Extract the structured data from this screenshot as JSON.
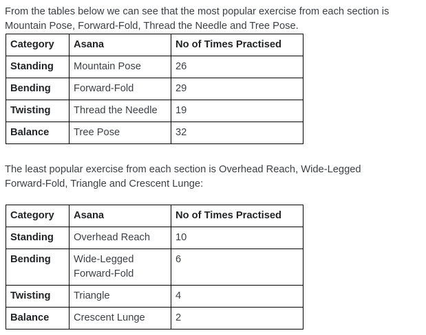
{
  "intro": {
    "lines": [
      "From the tables below we can see that the most popular exercise from each section is",
      "Mountain Pose, Forward-Fold, Thread the Needle and Tree Pose."
    ]
  },
  "least_popular_intro": {
    "lines": [
      "The least popular exercise from each section is Overhead Reach, Wide-Legged",
      "Forward-Fold, Triangle and Crescent Lunge:"
    ]
  },
  "tables": {
    "most_popular": {
      "headers": [
        "Category",
        "Asana",
        "No of Times Practised"
      ],
      "rows": [
        {
          "category": "Standing",
          "asana": "Mountain Pose",
          "count": "26"
        },
        {
          "category": "Bending",
          "asana": "Forward-Fold",
          "count": "29"
        },
        {
          "category": "Twisting",
          "asana": "Thread the Needle",
          "count": "19"
        },
        {
          "category": "Balance",
          "asana": "Tree Pose",
          "count": "32"
        }
      ]
    },
    "least_popular": {
      "headers": [
        "Category",
        "Asana",
        "No of Times Practised"
      ],
      "rows": [
        {
          "category": "Standing",
          "asana": "Overhead Reach",
          "count": "10"
        },
        {
          "category": "Bending",
          "asana": "Wide-Legged Forward-Fold",
          "count": "6"
        },
        {
          "category": "Twisting",
          "asana": "Triangle",
          "count": "4"
        },
        {
          "category": "Balance",
          "asana": "Crescent Lunge",
          "count": "2"
        }
      ]
    }
  },
  "colors": {
    "background": "#ffffff",
    "text": "#3c4043",
    "bold_text": "#222426",
    "table_border": "#000000"
  }
}
